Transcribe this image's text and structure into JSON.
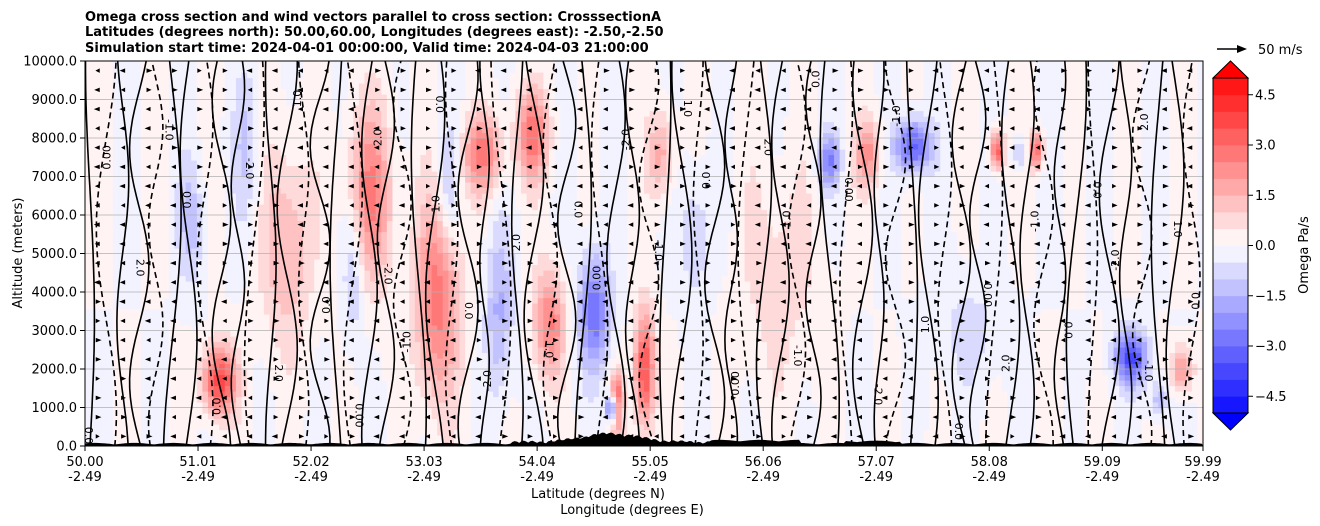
{
  "chart_data": {
    "type": "heatmap",
    "title": [
      "Omega cross section and wind vectors parallel to cross section: CrosssectionA",
      "Latitudes (degrees north): 50.00,60.00, Longitudes (degrees east): -2.50,-2.50",
      "Simulation start time: 2024-04-01 00:00:00, Valid time: 2024-04-03 21:00:00"
    ],
    "xlabel_lat": "Latitude (degrees N)",
    "xlabel_lon": "Longitude (degrees E)",
    "ylabel": "Altitude (meters)",
    "xlim": [
      50.0,
      59.99
    ],
    "ylim": [
      0,
      10000
    ],
    "x_tick_values": [
      50.0,
      51.01,
      52.02,
      53.03,
      54.04,
      55.05,
      56.06,
      57.07,
      58.08,
      59.09,
      59.99
    ],
    "x_tick_labels_lat": [
      "50.00",
      "51.01",
      "52.02",
      "53.03",
      "54.04",
      "55.05",
      "56.06",
      "57.07",
      "58.08",
      "59.09",
      "59.99"
    ],
    "x_tick_labels_lon": [
      "-2.49",
      "-2.49",
      "-2.49",
      "-2.49",
      "-2.49",
      "-2.49",
      "-2.49",
      "-2.49",
      "-2.49",
      "-2.49",
      "-2.49"
    ],
    "y_ticks": [
      0,
      1000,
      2000,
      3000,
      4000,
      5000,
      6000,
      7000,
      8000,
      9000,
      10000
    ],
    "y_tick_labels": [
      "0.0",
      "1000.0",
      "2000.0",
      "3000.0",
      "4000.0",
      "5000.0",
      "6000.0",
      "7000.0",
      "8000.0",
      "9000.0",
      "10000.0"
    ],
    "grid": "horizontal",
    "colorbar": {
      "label": "Omega Pa/s",
      "range": [
        -5.0,
        5.0
      ],
      "ticks": [
        4.5,
        3.0,
        1.5,
        0.0,
        -1.5,
        -3.0,
        -4.5
      ],
      "tick_labels": [
        "4.5",
        "3.0",
        "1.5",
        "0.0",
        "−1.5",
        "−3.0",
        "−4.5"
      ],
      "extend": "both"
    },
    "vector_key": {
      "value": 50,
      "label": "50 m/s"
    },
    "colors": {
      "positive": "#ff0000",
      "negative": "#0000ff",
      "terrain": "#000000"
    },
    "contour_labels": [
      "0.0",
      "1.0",
      "-1.0",
      "2.0",
      "-2.0",
      "0.00",
      "0.0"
    ]
  }
}
